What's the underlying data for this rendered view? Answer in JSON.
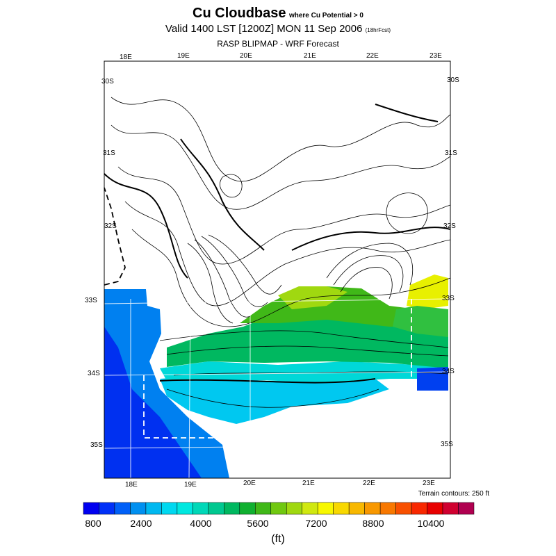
{
  "title": {
    "main": "Cu Cloudbase",
    "sub": "where Cu Potential > 0",
    "valid": "Valid 1400 LST [1200Z] MON 11 Sep 2006",
    "forecast": "(18hrFcst)",
    "model": "RASP BLIPMAP - WRF Forecast"
  },
  "map": {
    "top_lon_labels": [
      "18E",
      "19E",
      "20E",
      "21E",
      "22E",
      "23E"
    ],
    "bottom_lon_labels": [
      "18E",
      "19E",
      "20E",
      "21E",
      "22E",
      "23E"
    ],
    "left_lat_labels": [
      "30S",
      "31S",
      "32S",
      "33S",
      "34S",
      "35S"
    ],
    "right_lat_labels": [
      "30S",
      "31S",
      "32S",
      "33S",
      "34S",
      "35S"
    ],
    "terrain_note": "Terrain contours: 250 ft"
  },
  "colorbar": {
    "labels": [
      "800",
      "2400",
      "4000",
      "5600",
      "7200",
      "8800",
      "10400"
    ],
    "unit": "(ft)",
    "colors": [
      "#0000f0",
      "#0030f8",
      "#0060f8",
      "#0090f0",
      "#00b8f0",
      "#00d8f0",
      "#00e8e0",
      "#00d8b8",
      "#00c890",
      "#00b860",
      "#10b030",
      "#40b818",
      "#70c810",
      "#a0d810",
      "#d0e810",
      "#f8f800",
      "#f8d800",
      "#f8b800",
      "#f89800",
      "#f87800",
      "#f85000",
      "#f82800",
      "#e80000",
      "#d00030",
      "#b00050"
    ]
  }
}
